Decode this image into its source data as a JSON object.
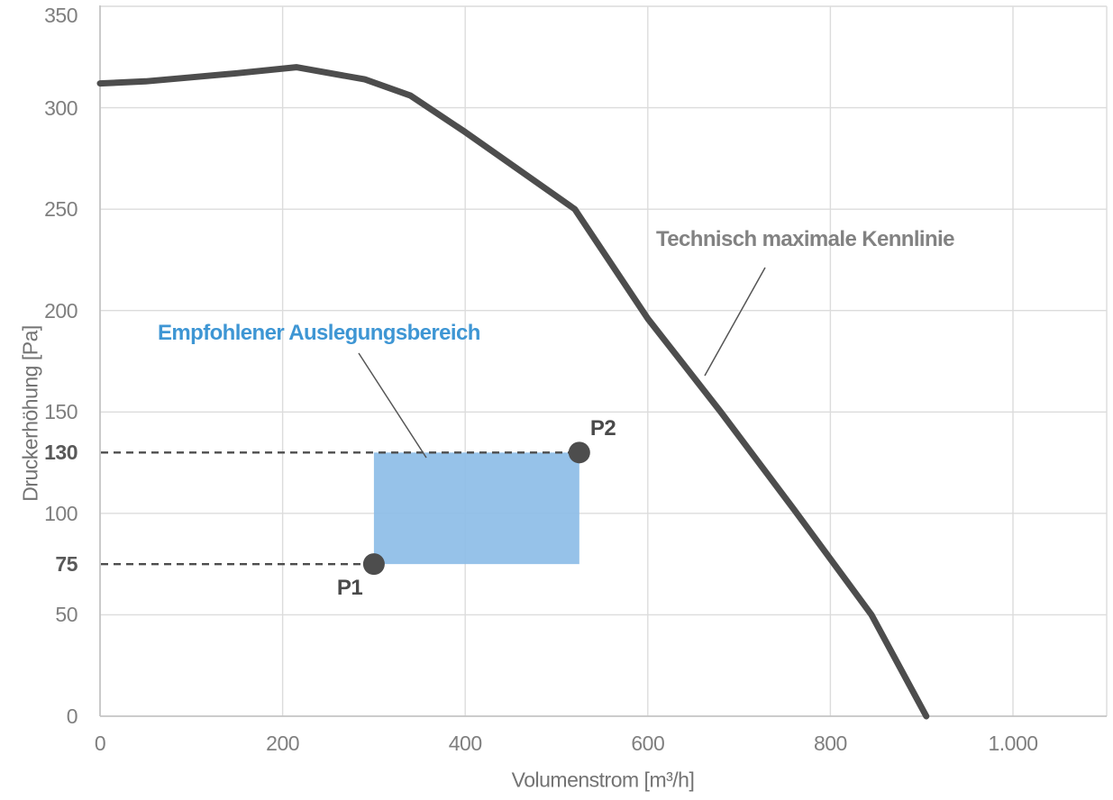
{
  "chart_data": {
    "type": "line",
    "title": "",
    "xlabel": "Volumenstrom [m³/h]",
    "ylabel": "Druckerhöhung [Pa]",
    "xlim": [
      0,
      1100
    ],
    "ylim": [
      0,
      350
    ],
    "grid": "on",
    "legend": "none (inline annotations with leader lines)",
    "x_ticks": [
      0,
      200,
      400,
      600,
      800,
      1000
    ],
    "x_tick_labels": [
      "0",
      "200",
      "400",
      "600",
      "800",
      "1.000"
    ],
    "y_ticks": [
      0,
      50,
      100,
      150,
      200,
      250,
      300,
      350
    ],
    "y_tick_labels": [
      "0",
      "50",
      "100",
      "150",
      "200",
      "250",
      "300",
      "350"
    ],
    "y_special_ticks": [
      {
        "value": 75,
        "label": "75",
        "bold": true
      },
      {
        "value": 130,
        "label": "130",
        "bold": true
      }
    ],
    "series": [
      {
        "name": "Technisch maximale Kennlinie",
        "color": "#4d4d4d",
        "points": [
          [
            0,
            312
          ],
          [
            50,
            313
          ],
          [
            100,
            315
          ],
          [
            150,
            317
          ],
          [
            215,
            320
          ],
          [
            290,
            314
          ],
          [
            340,
            306
          ],
          [
            400,
            288
          ],
          [
            460,
            269
          ],
          [
            520,
            250
          ],
          [
            600,
            196
          ],
          [
            680,
            150
          ],
          [
            760,
            102
          ],
          [
            845,
            50
          ],
          [
            905,
            0
          ]
        ]
      }
    ],
    "design_area": {
      "label": "Empfohlener Auslegungsbereich",
      "x_range": [
        300,
        525
      ],
      "y_range": [
        75,
        130
      ],
      "fill": "#8dbde7"
    },
    "points": [
      {
        "name": "P1",
        "x": 300,
        "y": 75
      },
      {
        "name": "P2",
        "x": 525,
        "y": 130
      }
    ],
    "dashed_guides_pa": [
      75,
      130
    ]
  },
  "colors": {
    "curve": "#4d4d4d",
    "dot": "#4d4d4d",
    "dash": "#4d4d4d",
    "leader": "#555555",
    "grid": "#dcdcdc",
    "axis": "#c4c4c4",
    "area_fill": "#8dbde7",
    "blue_text": "#3e96d4",
    "gray_text": "#828282",
    "tick_text": "#7f7f7f",
    "bold_tick_text": "#595959",
    "background": "#ffffff"
  }
}
